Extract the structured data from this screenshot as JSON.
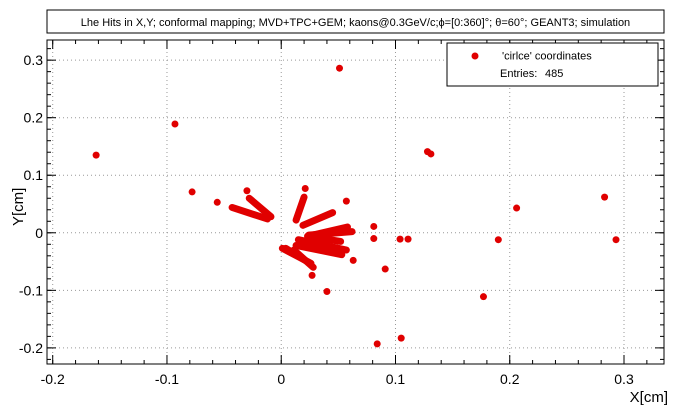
{
  "chart_data": {
    "type": "scatter",
    "title": "Lhe Hits in X,Y; conformal mapping; MVD+TPC+GEM; kaons@0.3GeV/c;ϕ=[0:360]°; θ=60°; GEANT3; simulation",
    "xlabel": "X[cm]",
    "ylabel": "Y[cm]",
    "xlim": [
      -0.205,
      0.335
    ],
    "ylim": [
      -0.228,
      0.335
    ],
    "x_ticks": [
      -0.2,
      -0.1,
      0,
      0.1,
      0.2,
      0.3
    ],
    "x_tick_labels": [
      "-0.2",
      "-0.1",
      "0",
      "0.1",
      "0.2",
      "0.3"
    ],
    "y_ticks": [
      -0.2,
      -0.1,
      0,
      0.1,
      0.2,
      0.3
    ],
    "y_tick_labels": [
      "-0.2",
      "-0.1",
      "0",
      "0.1",
      "0.2",
      "0.3"
    ],
    "grid": true,
    "legend": {
      "position": "top-right",
      "series_name": "'cirlce' coordinates",
      "stats_label": "Entries:",
      "stats_value": "485"
    },
    "marker_color": "#e00000",
    "segments": [
      {
        "from": [
          -0.043,
          0.044
        ],
        "to": [
          -0.012,
          0.024
        ]
      },
      {
        "from": [
          -0.028,
          0.06
        ],
        "to": [
          -0.009,
          0.028
        ]
      },
      {
        "from": [
          0.013,
          0.022
        ],
        "to": [
          0.02,
          0.062
        ]
      },
      {
        "from": [
          0.019,
          0.013
        ],
        "to": [
          0.045,
          0.035
        ]
      },
      {
        "from": [
          0.023,
          -0.006
        ],
        "to": [
          0.058,
          0.01
        ]
      },
      {
        "from": [
          0.024,
          -0.004
        ],
        "to": [
          0.062,
          0.002
        ]
      },
      {
        "from": [
          0.026,
          -0.007
        ],
        "to": [
          0.052,
          -0.015
        ]
      },
      {
        "from": [
          0.013,
          -0.022
        ],
        "to": [
          0.053,
          -0.038
        ]
      },
      {
        "from": [
          0.015,
          -0.012
        ],
        "to": [
          0.057,
          -0.03
        ]
      },
      {
        "from": [
          0.001,
          -0.027
        ],
        "to": [
          0.026,
          -0.053
        ]
      },
      {
        "from": [
          0.004,
          -0.027
        ],
        "to": [
          0.021,
          -0.048
        ]
      },
      {
        "from": [
          0.011,
          -0.03
        ],
        "to": [
          0.028,
          -0.06
        ]
      }
    ],
    "points": [
      {
        "x": 0.051,
        "y": 0.286
      },
      {
        "x": -0.093,
        "y": 0.189
      },
      {
        "x": -0.162,
        "y": 0.135
      },
      {
        "x": 0.128,
        "y": 0.141
      },
      {
        "x": 0.131,
        "y": 0.137
      },
      {
        "x": -0.078,
        "y": 0.071
      },
      {
        "x": -0.056,
        "y": 0.053
      },
      {
        "x": -0.03,
        "y": 0.073
      },
      {
        "x": 0.021,
        "y": 0.077
      },
      {
        "x": 0.057,
        "y": 0.055
      },
      {
        "x": 0.081,
        "y": 0.011
      },
      {
        "x": 0.081,
        "y": -0.01
      },
      {
        "x": 0.104,
        "y": -0.011
      },
      {
        "x": 0.111,
        "y": -0.011
      },
      {
        "x": 0.19,
        "y": -0.012
      },
      {
        "x": 0.206,
        "y": 0.043
      },
      {
        "x": 0.283,
        "y": 0.062
      },
      {
        "x": 0.293,
        "y": -0.012
      },
      {
        "x": 0.063,
        "y": -0.048
      },
      {
        "x": 0.091,
        "y": -0.063
      },
      {
        "x": 0.027,
        "y": -0.074
      },
      {
        "x": 0.04,
        "y": -0.102
      },
      {
        "x": 0.177,
        "y": -0.111
      },
      {
        "x": 0.105,
        "y": -0.183
      },
      {
        "x": 0.084,
        "y": -0.193
      }
    ]
  }
}
